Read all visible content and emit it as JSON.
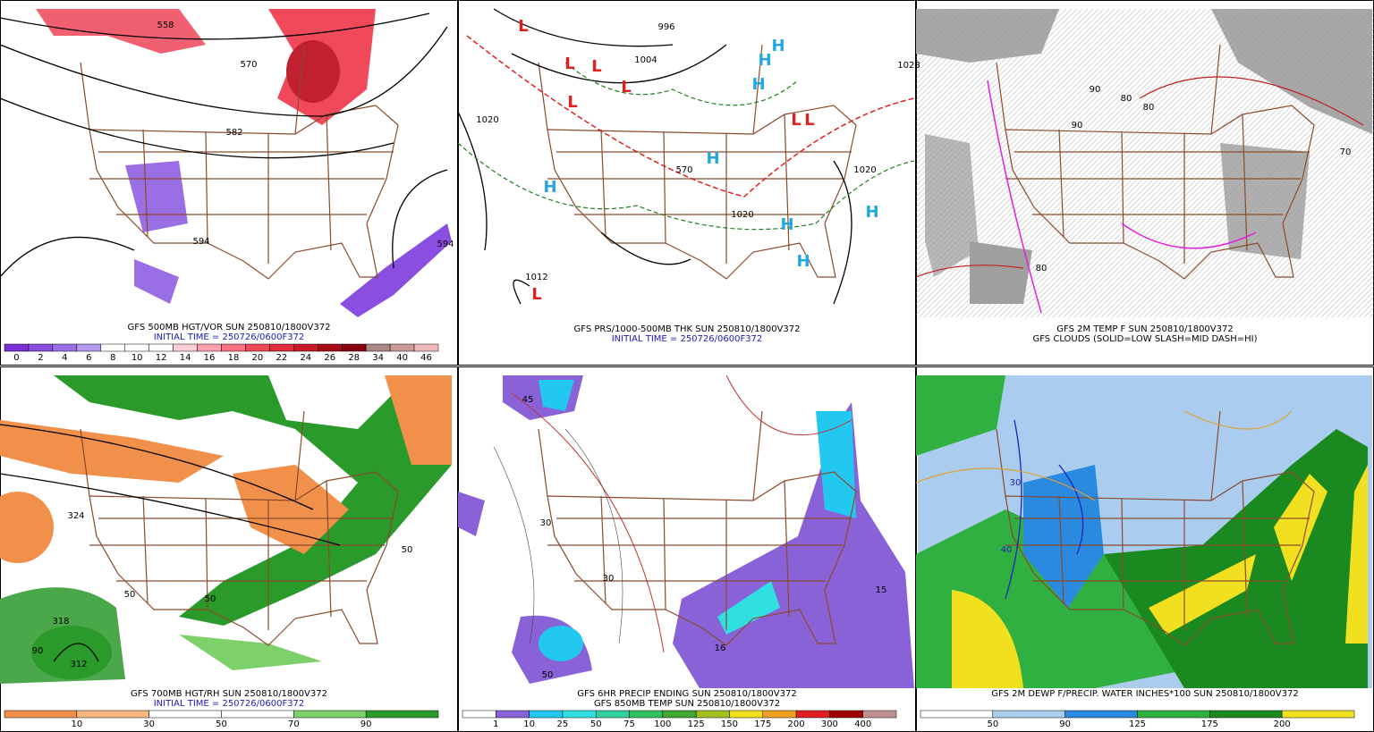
{
  "panels": [
    {
      "caption": [
        "GFS 500MB HGT/VOR SUN 250810/1800V372",
        "INITIAL TIME = 250726/0600F372"
      ],
      "colorbar": {
        "labels": [
          0,
          2,
          4,
          6,
          8,
          10,
          12,
          14,
          16,
          18,
          20,
          22,
          24,
          26,
          28,
          34,
          40,
          46
        ],
        "colors": [
          "#7b2fd6",
          "#8a4fe0",
          "#9a6fe6",
          "#b49af0",
          "#ffffff",
          "#ffffff",
          "#ffffff",
          "#ffd0d6",
          "#ffa0ac",
          "#ff7080",
          "#f04858",
          "#e02c3c",
          "#c81828",
          "#a80a18",
          "#880010",
          "#aa8888",
          "#cc9999",
          "#f0b8b8"
        ]
      },
      "map_labels": [
        "558",
        "570",
        "582",
        "594",
        "594"
      ]
    },
    {
      "caption": [
        "GFS PRS/1000-500MB THK SUN 250810/1800V372",
        "INITIAL TIME = 250726/0600F372"
      ],
      "map_labels": [
        "996",
        "1004",
        "1028",
        "1020",
        "1020",
        "1020",
        "1012",
        "570"
      ],
      "pressure_centers": [
        "L",
        "L",
        "L",
        "L",
        "L",
        "L",
        "L",
        "L",
        "H",
        "H",
        "H",
        "H",
        "H",
        "H",
        "H",
        "H"
      ]
    },
    {
      "caption": [
        "GFS 2M TEMP F SUN 250810/1800V372",
        "GFS CLOUDS (SOLID=LOW SLASH=MID DASH=HI)"
      ],
      "map_labels": [
        "80",
        "80",
        "80",
        "90",
        "90",
        "70"
      ]
    },
    {
      "caption": [
        "GFS 700MB HGT/RH SUN 250810/1800V372",
        "INITIAL TIME = 250726/0600F372"
      ],
      "colorbar": {
        "labels": [
          10,
          30,
          50,
          70,
          90
        ],
        "colors": [
          "#f0904a",
          "#f8b880",
          "#ffffff",
          "#ffffff",
          "#7ed06a",
          "#2a9a2a"
        ]
      },
      "map_labels": [
        "324",
        "318",
        "312",
        "50",
        "50",
        "50",
        "90"
      ]
    },
    {
      "caption": [
        "GFS 6HR PRECIP ENDING SUN 250810/1800V372",
        "GFS 850MB TEMP SUN 250810/1800V372"
      ],
      "colorbar": {
        "labels": [
          1,
          10,
          25,
          50,
          75,
          100,
          125,
          150,
          175,
          200,
          300,
          400
        ],
        "colors": [
          "#ffffff",
          "#8a62d8",
          "#22c8f0",
          "#30e0e0",
          "#30d0a0",
          "#30c060",
          "#40a830",
          "#a0c020",
          "#f0e020",
          "#f0a020",
          "#e02020",
          "#a00000",
          "#c09090"
        ]
      },
      "map_labels": [
        "45",
        "30",
        "30",
        "16",
        "50",
        "15"
      ]
    },
    {
      "caption": [
        "GFS 2M DEWP F/PRECIP. WATER INCHES*100 SUN 250810/1800V372"
      ],
      "colorbar": {
        "labels": [
          50,
          90,
          125,
          175,
          200
        ],
        "colors": [
          "#ffffff",
          "#aaccee",
          "#2a8ae0",
          "#30b040",
          "#1a8a20",
          "#f0e020"
        ]
      },
      "map_labels": [
        "30",
        "40"
      ]
    }
  ]
}
